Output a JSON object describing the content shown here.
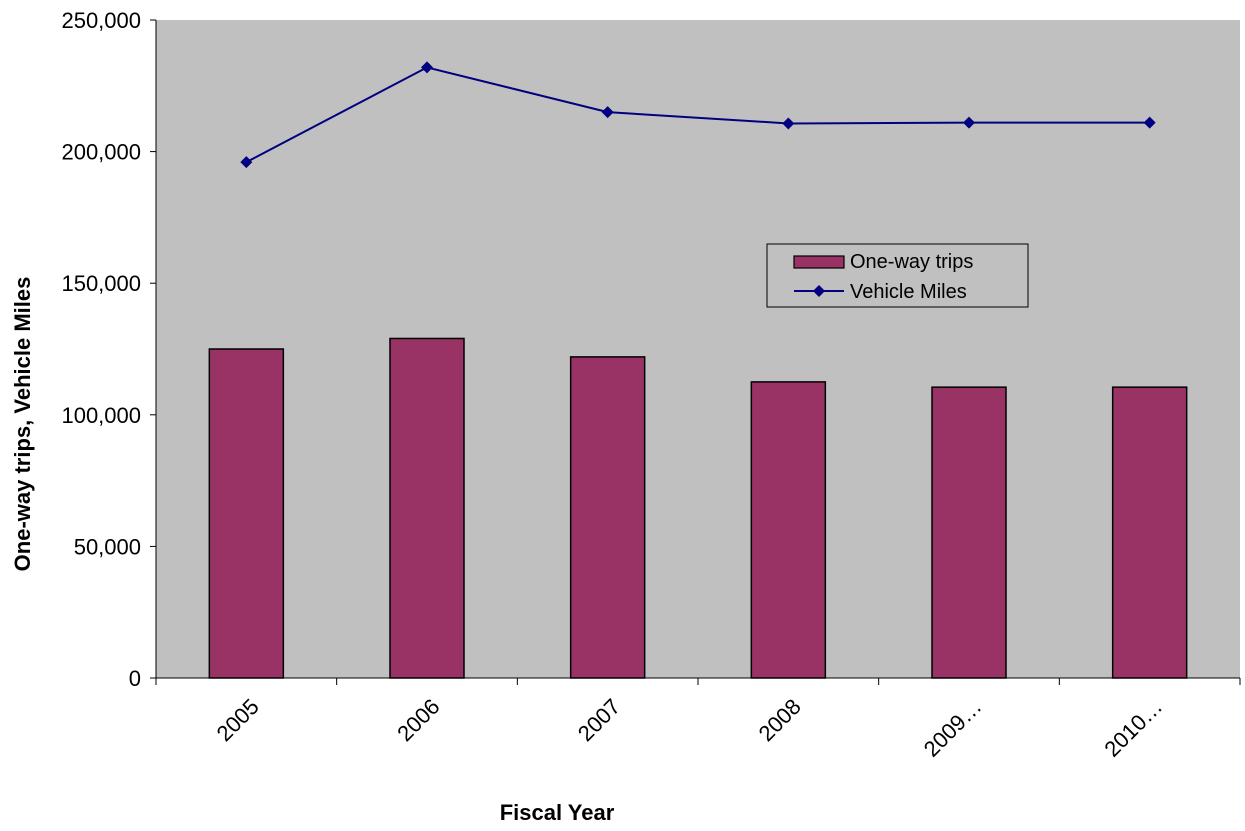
{
  "chart_data": {
    "type": "bar",
    "title": "",
    "xlabel": "Fiscal Year",
    "ylabel": "One-way trips, Vehicle Miles",
    "categories": [
      "2005",
      "2006",
      "2007",
      "2008",
      "2009…",
      "2010…"
    ],
    "ylim": [
      0,
      250000
    ],
    "yticks": [
      0,
      50000,
      100000,
      150000,
      200000,
      250000
    ],
    "ytick_labels": [
      "0",
      "50,000",
      "100,000",
      "150,000",
      "200,000",
      "250,000"
    ],
    "grid": false,
    "legend_position": "center-right",
    "plot_background": "#c0c0c0",
    "series": [
      {
        "name": "One-way trips",
        "type": "bar",
        "color": "#993366",
        "values": [
          125000,
          129000,
          122000,
          112500,
          110500,
          110500
        ]
      },
      {
        "name": "Vehicle Miles",
        "type": "line",
        "marker": "diamond",
        "color": "#000080",
        "values": [
          196000,
          232000,
          215000,
          210700,
          211000,
          211000
        ]
      }
    ]
  }
}
